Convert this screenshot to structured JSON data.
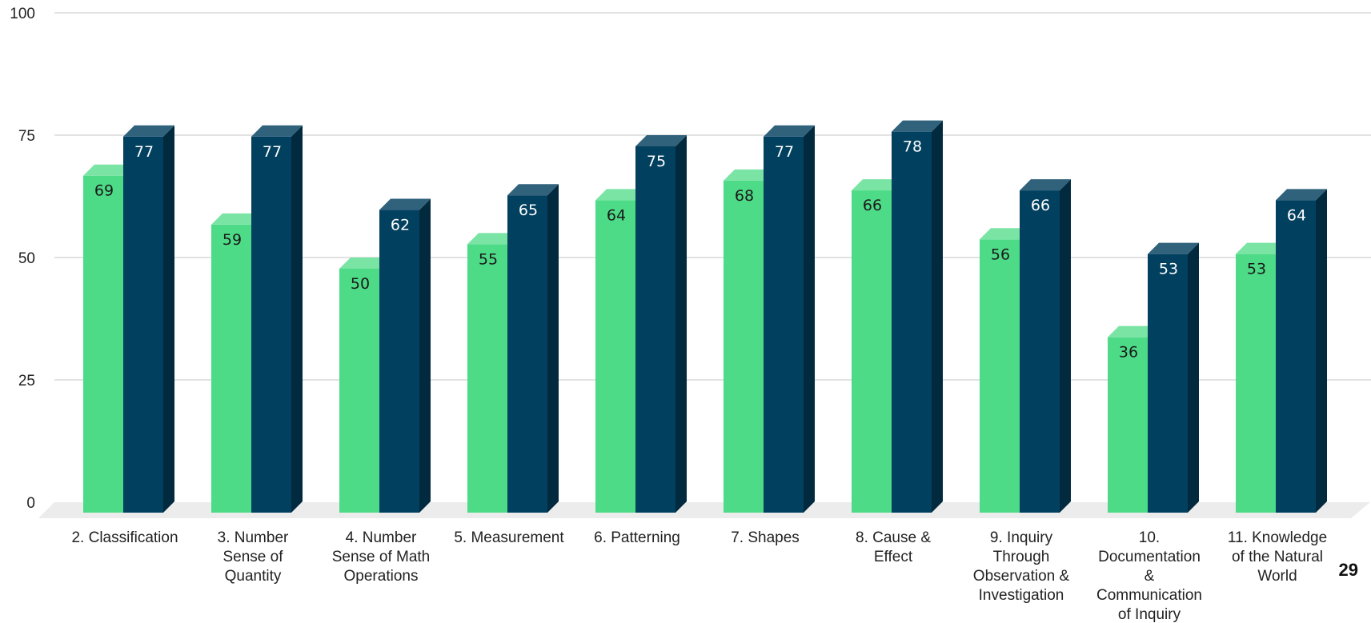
{
  "chart_data": {
    "type": "bar",
    "title": "",
    "xlabel": "",
    "ylabel": "",
    "ylim": [
      0,
      100
    ],
    "yticks": [
      0,
      25,
      50,
      75,
      100
    ],
    "grid": true,
    "legend": "none",
    "categories": [
      [
        "2. Classification"
      ],
      [
        "3. Number",
        "Sense of",
        "Quantity"
      ],
      [
        "4. Number",
        "Sense of Math",
        "Operations"
      ],
      [
        "5. Measurement"
      ],
      [
        "6. Patterning"
      ],
      [
        "7. Shapes"
      ],
      [
        "8. Cause &",
        "Effect"
      ],
      [
        "9. Inquiry",
        "Through",
        "Observation &",
        "Investigation"
      ],
      [
        "10.",
        "Documentation",
        "&",
        "Communication",
        "of Inquiry"
      ],
      [
        "11. Knowledge",
        "of the Natural",
        "World"
      ]
    ],
    "series": [
      {
        "values": [
          69,
          59,
          50,
          55,
          64,
          68,
          66,
          56,
          36,
          53
        ],
        "color": "#4ddb87"
      },
      {
        "values": [
          77,
          77,
          62,
          65,
          75,
          77,
          78,
          66,
          53,
          64
        ],
        "color": "#02405f"
      }
    ]
  },
  "page_number": "29"
}
